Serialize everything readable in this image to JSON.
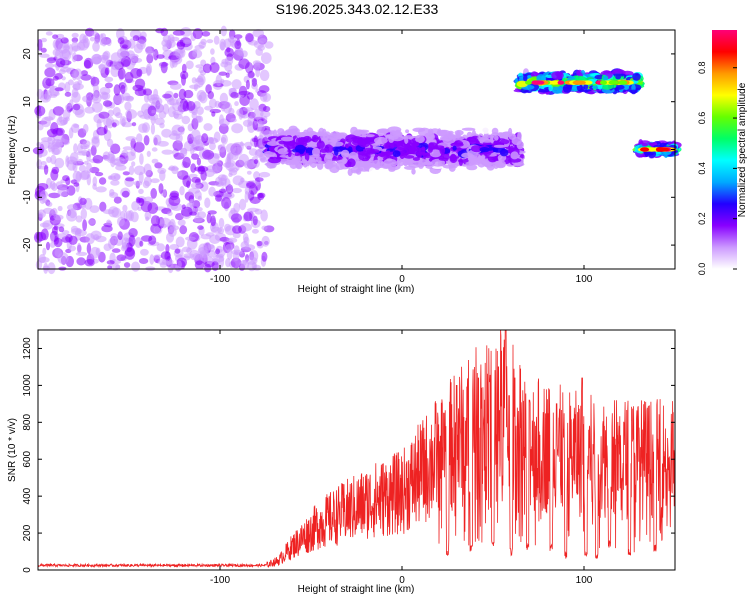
{
  "title": "S196.2025.343.02.12.E33",
  "chart_data": [
    {
      "type": "heatmap",
      "xlabel": "Height of straight line (km)",
      "ylabel": "Frequency (Hz)",
      "xlim": [
        -200,
        150
      ],
      "ylim": [
        -25,
        25
      ],
      "x_ticks": [
        -100,
        0,
        100
      ],
      "y_ticks": [
        -20,
        -10,
        0,
        10,
        20
      ],
      "colorbar": {
        "label": "Normalized spectral amplitude",
        "range": [
          0,
          0.95
        ],
        "ticks": [
          0.0,
          0.2,
          0.4,
          0.6,
          0.8
        ],
        "colormap": [
          "#ffffff",
          "#cc99ff",
          "#8800ff",
          "#2200ff",
          "#00aaff",
          "#00ffff",
          "#00ff66",
          "#66ff00",
          "#ffff00",
          "#ff9900",
          "#ff0000",
          "#ff0077"
        ]
      },
      "segments": [
        {
          "x_range": [
            -200,
            -73
          ],
          "center_freq_hz": 0,
          "spread_hz": 25,
          "amplitude": 0.05,
          "description": "noise"
        },
        {
          "x_range": [
            -73,
            65
          ],
          "center_freq_hz": 0,
          "spread_hz": 5,
          "amplitude": 0.2
        },
        {
          "x_range": [
            65,
            130
          ],
          "center_freq_hz": 14,
          "spread_hz": 2.5,
          "amplitude": 0.6
        },
        {
          "x_range": [
            130,
            150
          ],
          "center_freq_hz": 0,
          "spread_hz": 1.5,
          "amplitude": 0.5
        }
      ]
    },
    {
      "type": "line",
      "xlabel": "Height of straight line (km)",
      "ylabel": "SNR (10 * v/v)",
      "xlim": [
        -200,
        150
      ],
      "ylim": [
        0,
        1300
      ],
      "x_ticks": [
        -100,
        0,
        100
      ],
      "y_ticks": [
        0,
        200,
        400,
        600,
        800,
        1000,
        1200
      ],
      "color": "#ee2222",
      "envelope": [
        {
          "x": -200,
          "y": 25
        },
        {
          "x": -75,
          "y": 25
        },
        {
          "x": -68,
          "y": 50
        },
        {
          "x": -60,
          "y": 130
        },
        {
          "x": -45,
          "y": 250
        },
        {
          "x": -30,
          "y": 320
        },
        {
          "x": -15,
          "y": 380
        },
        {
          "x": 0,
          "y": 420
        },
        {
          "x": 10,
          "y": 520
        },
        {
          "x": 20,
          "y": 620
        },
        {
          "x": 30,
          "y": 700
        },
        {
          "x": 40,
          "y": 780
        },
        {
          "x": 50,
          "y": 800
        },
        {
          "x": 56,
          "y": 900
        },
        {
          "x": 65,
          "y": 720
        },
        {
          "x": 75,
          "y": 680
        },
        {
          "x": 90,
          "y": 640
        },
        {
          "x": 100,
          "y": 620
        },
        {
          "x": 120,
          "y": 610
        },
        {
          "x": 140,
          "y": 600
        },
        {
          "x": 150,
          "y": 600
        }
      ],
      "peaks": [
        {
          "x": 23,
          "y": 850
        },
        {
          "x": 30,
          "y": 1000
        },
        {
          "x": 42,
          "y": 1040
        },
        {
          "x": 48,
          "y": 1020
        },
        {
          "x": 53,
          "y": 1100
        },
        {
          "x": 57,
          "y": 1300
        },
        {
          "x": 62,
          "y": 1040
        },
        {
          "x": 70,
          "y": 920
        },
        {
          "x": 85,
          "y": 900
        },
        {
          "x": 99,
          "y": 1040
        },
        {
          "x": 105,
          "y": 680
        },
        {
          "x": 116,
          "y": 720
        }
      ],
      "dips": [
        {
          "x": 25,
          "y": 80
        },
        {
          "x": 38,
          "y": 100
        },
        {
          "x": 50,
          "y": 120
        },
        {
          "x": 60,
          "y": 80
        },
        {
          "x": 69,
          "y": 100
        },
        {
          "x": 82,
          "y": 100
        },
        {
          "x": 90,
          "y": 60
        },
        {
          "x": 101,
          "y": 70
        },
        {
          "x": 107,
          "y": 60
        },
        {
          "x": 114,
          "y": 120
        },
        {
          "x": 125,
          "y": 80
        },
        {
          "x": 139,
          "y": 100
        }
      ]
    }
  ]
}
